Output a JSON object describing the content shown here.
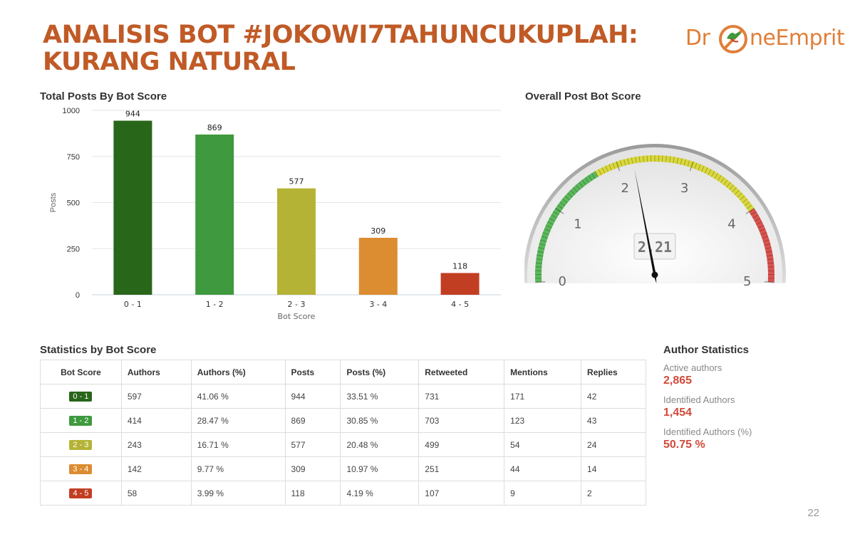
{
  "page": {
    "title_line1": "ANALISIS BOT #JOKOWI7TAHUNCUKUPLAH:",
    "title_line2": "KURANG NATURAL",
    "logo_left": "Dr",
    "logo_right": "neEmprit",
    "page_number": "22"
  },
  "colors": {
    "title": "#c05a26",
    "logo": "#e07f3a",
    "value_highlight": "#d24a3a"
  },
  "chart_data": [
    {
      "type": "bar",
      "title": "Total Posts By Bot Score",
      "categories": [
        "0 - 1",
        "1 - 2",
        "2 - 3",
        "3 - 4",
        "4 - 5"
      ],
      "values": [
        944,
        869,
        577,
        309,
        118
      ],
      "colors": [
        "#286619",
        "#3f993e",
        "#b5b336",
        "#dc8c31",
        "#c23e22"
      ],
      "xlabel": "Bot Score",
      "ylabel": "Posts",
      "ylim": [
        0,
        1000
      ],
      "yticks": [
        0,
        250,
        500,
        750,
        1000
      ],
      "grid": true,
      "legend": "none"
    },
    {
      "type": "gauge",
      "title": "Overall Post Bot Score",
      "value": 2.21,
      "value_label": "2.21",
      "range": [
        0,
        5
      ],
      "ticks": [
        0,
        1,
        2,
        3,
        4,
        5
      ],
      "bands": [
        {
          "from": 0,
          "to": 1.7,
          "color": "#5cb85c"
        },
        {
          "from": 1.7,
          "to": 4.0,
          "color": "#d9d83d"
        },
        {
          "from": 4.0,
          "to": 5.0,
          "color": "#d9534f"
        }
      ]
    }
  ],
  "stats_table": {
    "title": "Statistics by Bot Score",
    "columns": [
      "Bot Score",
      "Authors",
      "Authors (%)",
      "Posts",
      "Posts (%)",
      "Retweeted",
      "Mentions",
      "Replies"
    ],
    "rows": [
      {
        "score": "0 - 1",
        "color": "#286619",
        "authors": "597",
        "authors_pct": "41.06 %",
        "posts": "944",
        "posts_pct": "33.51 %",
        "retweeted": "731",
        "mentions": "171",
        "replies": "42"
      },
      {
        "score": "1 - 2",
        "color": "#3f993e",
        "authors": "414",
        "authors_pct": "28.47 %",
        "posts": "869",
        "posts_pct": "30.85 %",
        "retweeted": "703",
        "mentions": "123",
        "replies": "43"
      },
      {
        "score": "2 - 3",
        "color": "#b5b336",
        "authors": "243",
        "authors_pct": "16.71 %",
        "posts": "577",
        "posts_pct": "20.48 %",
        "retweeted": "499",
        "mentions": "54",
        "replies": "24"
      },
      {
        "score": "3 - 4",
        "color": "#dc8c31",
        "authors": "142",
        "authors_pct": "9.77 %",
        "posts": "309",
        "posts_pct": "10.97 %",
        "retweeted": "251",
        "mentions": "44",
        "replies": "14"
      },
      {
        "score": "4 - 5",
        "color": "#c23e22",
        "authors": "58",
        "authors_pct": "3.99 %",
        "posts": "118",
        "posts_pct": "4.19 %",
        "retweeted": "107",
        "mentions": "9",
        "replies": "2"
      }
    ]
  },
  "author_stats": {
    "title": "Author Statistics",
    "items": [
      {
        "label": "Active authors",
        "value": "2,865"
      },
      {
        "label": "Identified Authors",
        "value": "1,454"
      },
      {
        "label": "Identified Authors (%)",
        "value": "50.75 %"
      }
    ]
  }
}
